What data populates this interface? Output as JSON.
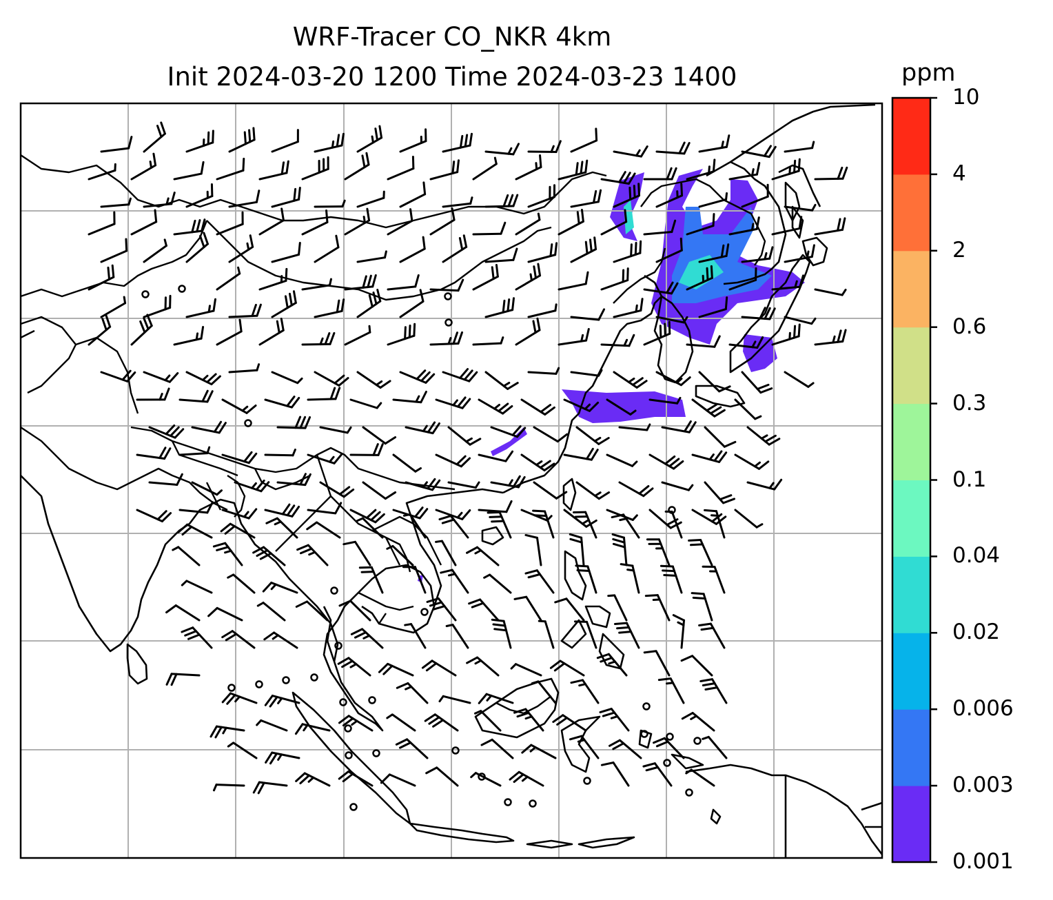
{
  "title": {
    "line1": "WRF-Tracer CO_NKR 4km",
    "line2": "Init 2024-03-20 1200 Time 2024-03-23 1400"
  },
  "colorbar": {
    "unit": "ppm",
    "levels": [
      "0.001",
      "0.003",
      "0.006",
      "0.02",
      "0.04",
      "0.1",
      "0.3",
      "0.6",
      "2",
      "4",
      "10"
    ],
    "colors": [
      "#6a2cf5",
      "#3477f4",
      "#06b3ea",
      "#30dcd3",
      "#6cf8c0",
      "#9ef59a",
      "#d0e088",
      "#fbb362",
      "#ff7038",
      "#ff2a16"
    ]
  },
  "map": {
    "gridlines": true,
    "features": [
      "coastlines",
      "country-borders",
      "wind-barbs",
      "tracer-plume"
    ],
    "tracer_color_main": "#6a2cf5",
    "tracer_color_mid": "#3477f4",
    "tracer_color_high": "#30dcd3"
  }
}
